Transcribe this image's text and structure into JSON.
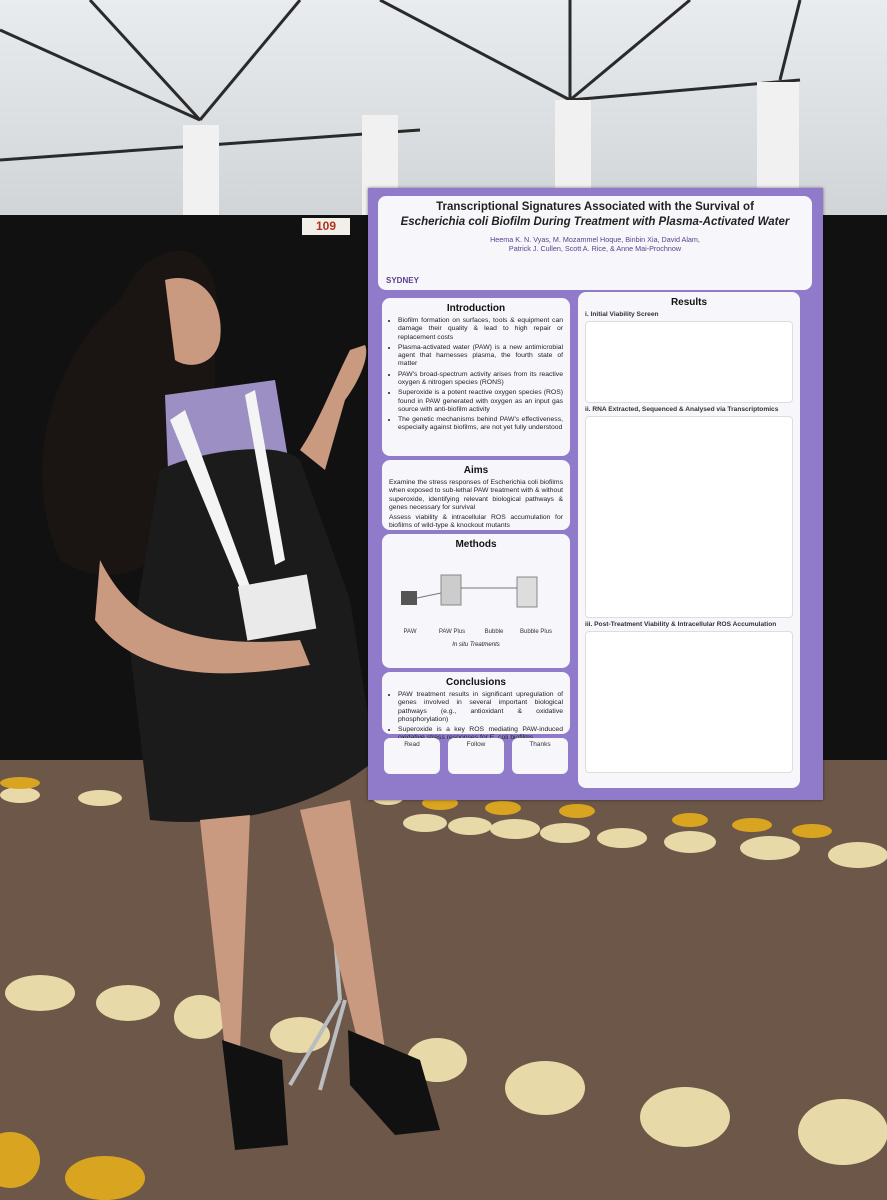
{
  "booth_number": "109",
  "poster": {
    "title": [
      "Transcriptional Signatures Associated with the Survival of",
      "Escherichia coli Biofilm During Treatment with Plasma-Activated Water"
    ],
    "authors": [
      "Heema K. N. Vyas, M. Mozammel Hoque, Binbin Xia, David Alam,",
      "Patrick J. Cullen, Scott A. Rice, & Anne Mai-Prochnow"
    ],
    "logo": "SYDNEY",
    "introduction": {
      "heading": "Introduction",
      "bullets": [
        "Biofilm formation on surfaces, tools & equipment can damage their quality & lead to high repair or replacement costs",
        "Plasma-activated water (PAW) is a new antimicrobial agent that harnesses plasma, the fourth state of matter",
        "PAW's broad-spectrum activity arises from its reactive oxygen & nitrogen species (RONS)",
        "Superoxide is a potent reactive oxygen species (ROS) found in PAW generated with oxygen as an input gas source with anti-biofilm activity",
        "The genetic mechanisms behind PAW's effectiveness, especially against biofilms, are not yet fully understood"
      ]
    },
    "aims": {
      "heading": "Aims",
      "bullets": [
        "Examine the stress responses of Escherichia coli biofilms when exposed to sub-lethal PAW treatment with & without superoxide, identifying relevant biological pathways & genes necessary for survival",
        "Assess viability & intracellular ROS accumulation for biofilms of wild-type & knockout mutants"
      ]
    },
    "methods": {
      "heading": "Methods",
      "labels": [
        "PAW",
        "PAW Plus",
        "Bubble",
        "Bubble Plus"
      ],
      "caption": "In situ Treatments"
    },
    "conclusions": {
      "heading": "Conclusions",
      "bullets": [
        "PAW treatment results in significant upregulation of genes involved in several important biological pathways (e.g., antioxidant & oxidative phosphorylation)",
        "Superoxide is a key ROS mediating PAW-induced oxidative stress responses for E. coli biofilms"
      ]
    },
    "results": {
      "heading": "Results",
      "subsections": [
        "i. Initial Viability Screen",
        "ii. RNA Extracted, Sequenced & Analysed via Transcriptomics",
        "iii. Post-Treatment Viability & Intracellular ROS Accumulation"
      ]
    },
    "footer": [
      "Read",
      "Follow",
      "Thanks"
    ]
  }
}
